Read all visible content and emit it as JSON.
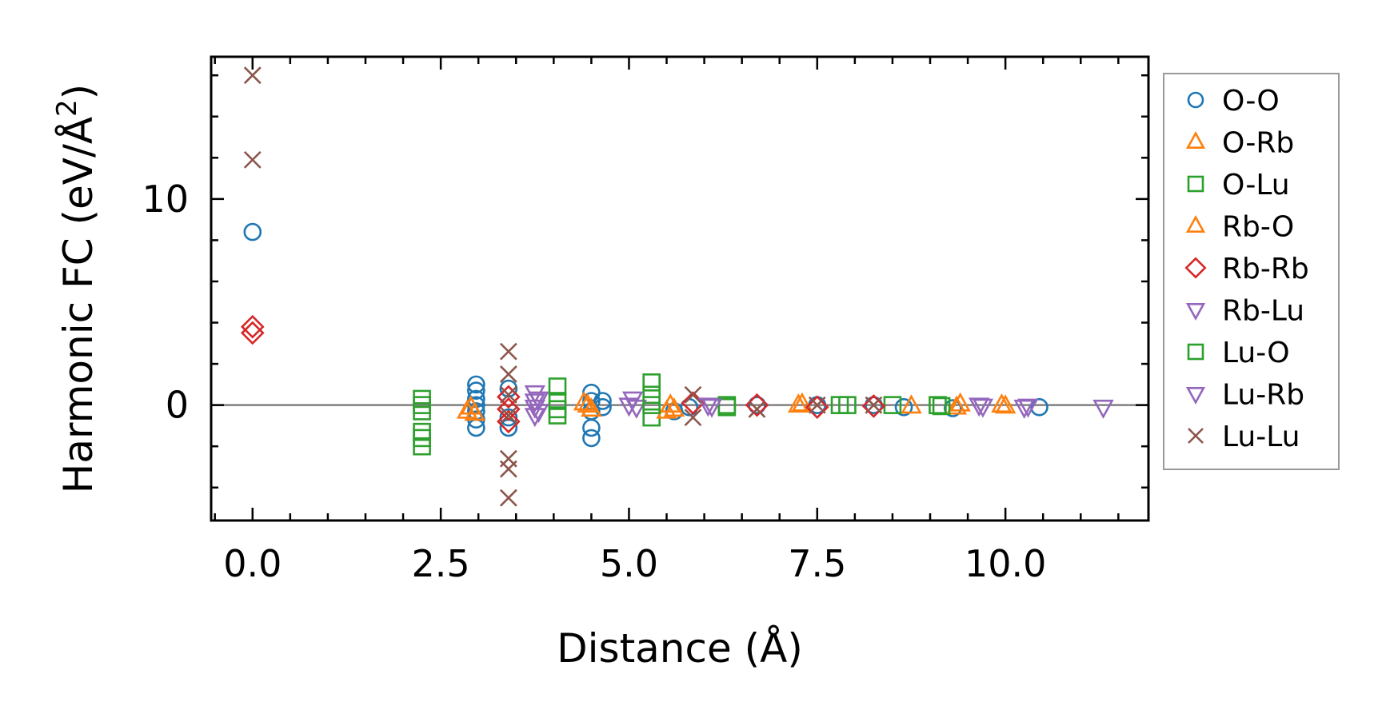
{
  "chart_data": {
    "type": "scatter",
    "title": "",
    "xlabel": "Distance (Å)",
    "ylabel_main": "Harmonic FC (eV/Å",
    "ylabel_sup": "2",
    "ylabel_close": ")",
    "xlim": [
      -0.55,
      11.9
    ],
    "ylim": [
      -5.6,
      16.9
    ],
    "x_ticks": [
      0.0,
      2.5,
      5.0,
      7.5,
      10.0
    ],
    "x_tick_labels": [
      "0.0",
      "2.5",
      "5.0",
      "7.5",
      "10.0"
    ],
    "y_ticks": [
      0,
      10
    ],
    "y_tick_labels": [
      "0",
      "10"
    ],
    "zero_line": true,
    "grid": false,
    "legend_position": "outside-right",
    "series": [
      {
        "name": "O-O",
        "marker": "circle",
        "color": "#1f77b4",
        "points": [
          [
            0.0,
            8.4
          ],
          [
            2.97,
            1.0
          ],
          [
            2.97,
            0.7
          ],
          [
            2.97,
            0.3
          ],
          [
            2.97,
            0.0
          ],
          [
            2.97,
            -0.3
          ],
          [
            2.97,
            -0.7
          ],
          [
            2.97,
            -1.1
          ],
          [
            3.4,
            0.8
          ],
          [
            3.4,
            -0.6
          ],
          [
            3.4,
            -1.1
          ],
          [
            4.5,
            0.6
          ],
          [
            4.5,
            0.2
          ],
          [
            4.5,
            -0.3
          ],
          [
            4.5,
            -1.1
          ],
          [
            4.5,
            -1.6
          ],
          [
            4.65,
            0.2
          ],
          [
            4.65,
            -0.1
          ],
          [
            5.6,
            -0.3
          ],
          [
            5.8,
            -0.1
          ],
          [
            6.7,
            0.0
          ],
          [
            7.5,
            0.0
          ],
          [
            8.25,
            0.0
          ],
          [
            8.65,
            -0.1
          ],
          [
            9.3,
            -0.15
          ],
          [
            10.45,
            -0.1
          ]
        ]
      },
      {
        "name": "O-Rb",
        "marker": "triangle-up",
        "color": "#ff7f0e",
        "points": [
          [
            2.85,
            -0.3
          ],
          [
            2.9,
            -0.1
          ],
          [
            4.4,
            0.1
          ],
          [
            4.5,
            -0.2
          ],
          [
            5.55,
            0.0
          ],
          [
            5.6,
            -0.2
          ],
          [
            7.25,
            0.0
          ],
          [
            8.75,
            -0.05
          ],
          [
            9.35,
            -0.1
          ],
          [
            9.95,
            0.0
          ]
        ]
      },
      {
        "name": "O-Lu",
        "marker": "square",
        "color": "#2ca02c",
        "points": [
          [
            2.25,
            0.3
          ],
          [
            2.25,
            -0.3
          ],
          [
            2.25,
            -1.3
          ],
          [
            2.25,
            -1.6
          ],
          [
            2.25,
            -2.0
          ],
          [
            4.05,
            0.9
          ],
          [
            4.05,
            0.2
          ],
          [
            4.05,
            -0.5
          ],
          [
            5.3,
            1.1
          ],
          [
            5.3,
            0.5
          ],
          [
            5.3,
            -0.6
          ],
          [
            6.3,
            -0.1
          ],
          [
            7.8,
            0.0
          ],
          [
            8.5,
            0.0
          ],
          [
            9.1,
            0.0
          ]
        ]
      },
      {
        "name": "Rb-O",
        "marker": "triangle-up",
        "color": "#ff7f0e",
        "points": [
          [
            2.95,
            -0.4
          ],
          [
            4.45,
            0.0
          ],
          [
            5.5,
            -0.3
          ],
          [
            7.3,
            0.05
          ],
          [
            9.4,
            0.05
          ],
          [
            10.0,
            -0.05
          ]
        ]
      },
      {
        "name": "Rb-Rb",
        "marker": "diamond",
        "color": "#d62728",
        "points": [
          [
            0.0,
            3.8
          ],
          [
            0.0,
            3.5
          ],
          [
            3.4,
            0.4
          ],
          [
            3.4,
            -0.2
          ],
          [
            3.4,
            -0.8
          ],
          [
            5.85,
            0.1
          ],
          [
            6.7,
            0.0
          ],
          [
            7.5,
            -0.1
          ],
          [
            8.25,
            -0.05
          ]
        ]
      },
      {
        "name": "Rb-Lu",
        "marker": "triangle-down",
        "color": "#9467bd",
        "points": [
          [
            3.75,
            0.6
          ],
          [
            3.75,
            0.2
          ],
          [
            3.75,
            -0.1
          ],
          [
            3.75,
            -0.5
          ],
          [
            5.05,
            0.3
          ],
          [
            5.1,
            -0.1
          ],
          [
            6.05,
            0.0
          ],
          [
            9.65,
            0.0
          ],
          [
            10.25,
            -0.1
          ],
          [
            11.3,
            -0.1
          ]
        ]
      },
      {
        "name": "Lu-O",
        "marker": "square",
        "color": "#2ca02c",
        "points": [
          [
            2.25,
            0.0
          ],
          [
            4.05,
            -0.2
          ],
          [
            5.3,
            0.0
          ],
          [
            6.3,
            0.0
          ],
          [
            7.9,
            0.0
          ],
          [
            9.15,
            -0.05
          ]
        ]
      },
      {
        "name": "Lu-Rb",
        "marker": "triangle-down",
        "color": "#9467bd",
        "points": [
          [
            3.8,
            0.3
          ],
          [
            3.8,
            -0.3
          ],
          [
            5.0,
            0.0
          ],
          [
            6.1,
            -0.05
          ],
          [
            9.7,
            -0.05
          ],
          [
            10.3,
            -0.05
          ]
        ]
      },
      {
        "name": "Lu-Lu",
        "marker": "x",
        "color": "#8c564b",
        "points": [
          [
            0.0,
            16.0
          ],
          [
            0.0,
            11.9
          ],
          [
            3.4,
            2.6
          ],
          [
            3.4,
            1.5
          ],
          [
            3.4,
            0.5
          ],
          [
            3.4,
            -0.5
          ],
          [
            3.4,
            -2.6
          ],
          [
            3.4,
            -3.1
          ],
          [
            3.4,
            -4.5
          ],
          [
            5.85,
            0.5
          ],
          [
            5.85,
            -0.6
          ],
          [
            6.7,
            -0.2
          ],
          [
            7.5,
            0.0
          ],
          [
            8.25,
            0.0
          ]
        ]
      }
    ]
  }
}
